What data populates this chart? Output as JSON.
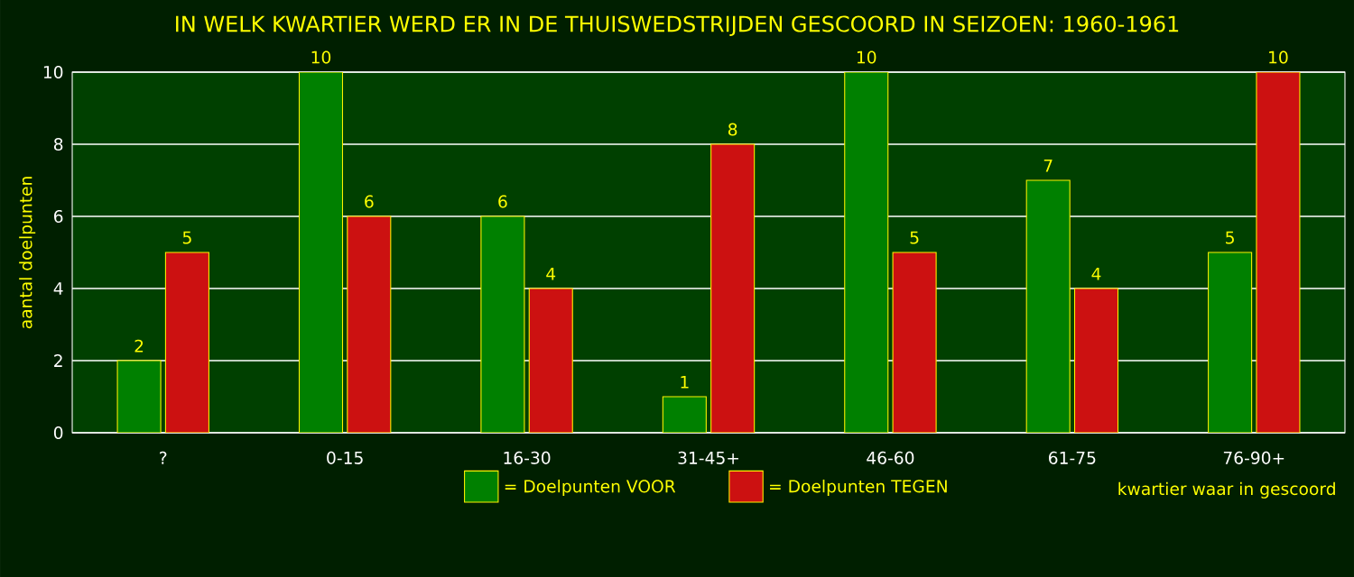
{
  "chart_data": {
    "type": "bar",
    "title": "IN WELK KWARTIER WERD ER IN DE THUISWEDSTRIJDEN GESCOORD IN SEIZOEN: 1960-1961",
    "xlabel": "kwartier waar in gescoord",
    "ylabel": "aantal doelpunten",
    "categories": [
      "?",
      "0-15",
      "16-30",
      "31-45+",
      "46-60",
      "61-75",
      "76-90+"
    ],
    "series": [
      {
        "name": "= Doelpunten VOOR",
        "color": "#008000",
        "values": [
          2,
          10,
          6,
          1,
          10,
          7,
          5
        ]
      },
      {
        "name": "= Doelpunten TEGEN",
        "color": "#cc1111",
        "values": [
          5,
          6,
          4,
          8,
          5,
          4,
          10
        ]
      }
    ],
    "ylim": [
      0,
      10
    ],
    "yticks": [
      0,
      2,
      4,
      6,
      8,
      10
    ],
    "grid": "y",
    "legend": "bottom",
    "data_labels": true
  }
}
